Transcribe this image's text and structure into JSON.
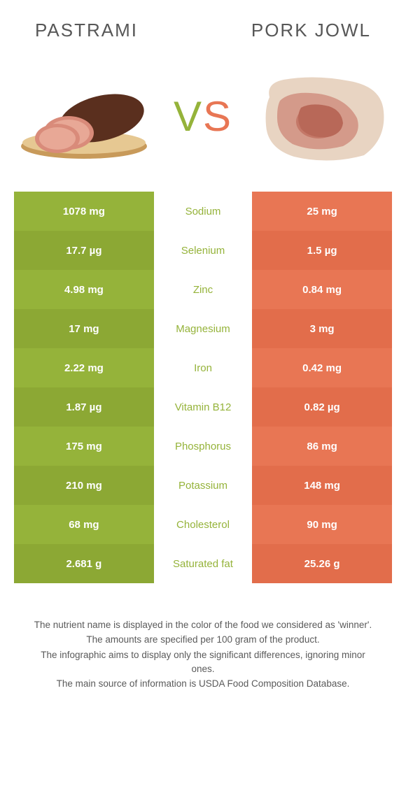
{
  "header": {
    "left_title": "Pastrami",
    "right_title": "Pork jowl",
    "vs_v": "V",
    "vs_s": "S"
  },
  "colors": {
    "left_base": "#95b33a",
    "left_alt": "#8ca834",
    "right_base": "#e87654",
    "right_alt": "#e26d4b",
    "text_white": "#ffffff"
  },
  "table": {
    "rows": [
      {
        "left": "1078 mg",
        "label": "Sodium",
        "right": "25 mg",
        "winner": "left"
      },
      {
        "left": "17.7 µg",
        "label": "Selenium",
        "right": "1.5 µg",
        "winner": "left"
      },
      {
        "left": "4.98 mg",
        "label": "Zinc",
        "right": "0.84 mg",
        "winner": "left"
      },
      {
        "left": "17 mg",
        "label": "Magnesium",
        "right": "3 mg",
        "winner": "left"
      },
      {
        "left": "2.22 mg",
        "label": "Iron",
        "right": "0.42 mg",
        "winner": "left"
      },
      {
        "left": "1.87 µg",
        "label": "Vitamin B12",
        "right": "0.82 µg",
        "winner": "left"
      },
      {
        "left": "175 mg",
        "label": "Phosphorus",
        "right": "86 mg",
        "winner": "left"
      },
      {
        "left": "210 mg",
        "label": "Potassium",
        "right": "148 mg",
        "winner": "left"
      },
      {
        "left": "68 mg",
        "label": "Cholesterol",
        "right": "90 mg",
        "winner": "left"
      },
      {
        "left": "2.681 g",
        "label": "Saturated fat",
        "right": "25.26 g",
        "winner": "left"
      }
    ]
  },
  "footer": {
    "line1": "The nutrient name is displayed in the color of the food we considered as 'winner'.",
    "line2": "The amounts are specified per 100 gram of the product.",
    "line3": "The infographic aims to display only the significant differences, ignoring minor ones.",
    "line4": "The main source of information is USDA Food Composition Database."
  }
}
